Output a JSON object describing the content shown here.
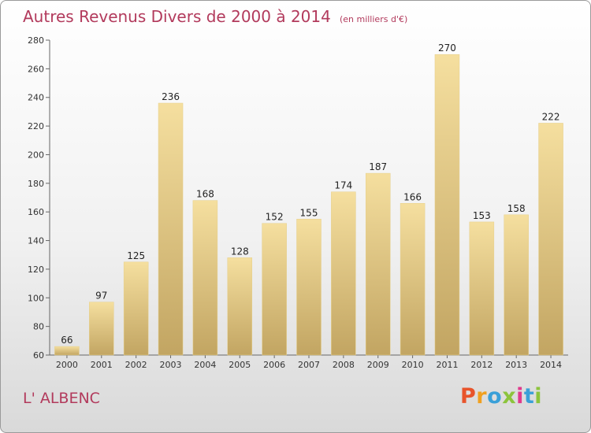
{
  "header": {
    "title": "Autres Revenus Divers de 2000 à 2014",
    "subtitle": "(en milliers d'€)"
  },
  "footer": {
    "commune": "L' ALBENC",
    "brand": "Proxiti",
    "brand_colors": [
      "#e8542b",
      "#f0a020",
      "#3aa0d8",
      "#8cc43c",
      "#e03a8c",
      "#3aa0d8",
      "#8cc43c"
    ]
  },
  "chart_data": {
    "type": "bar",
    "title": "Autres Revenus Divers de 2000 à 2014",
    "subtitle": "(en milliers d'€)",
    "xlabel": "",
    "ylabel": "",
    "categories": [
      "2000",
      "2001",
      "2002",
      "2003",
      "2004",
      "2005",
      "2006",
      "2007",
      "2008",
      "2009",
      "2010",
      "2011",
      "2012",
      "2013",
      "2014"
    ],
    "values": [
      66,
      97,
      125,
      236,
      168,
      128,
      152,
      155,
      174,
      187,
      166,
      270,
      153,
      158,
      222
    ],
    "ylim": [
      60,
      280
    ],
    "yticks": [
      60,
      80,
      100,
      120,
      140,
      160,
      180,
      200,
      220,
      240,
      260,
      280
    ],
    "grid": false,
    "colors": {
      "bar_top": "#f5df9f",
      "bar_bottom": "#c2a562",
      "axis": "#666666"
    }
  }
}
